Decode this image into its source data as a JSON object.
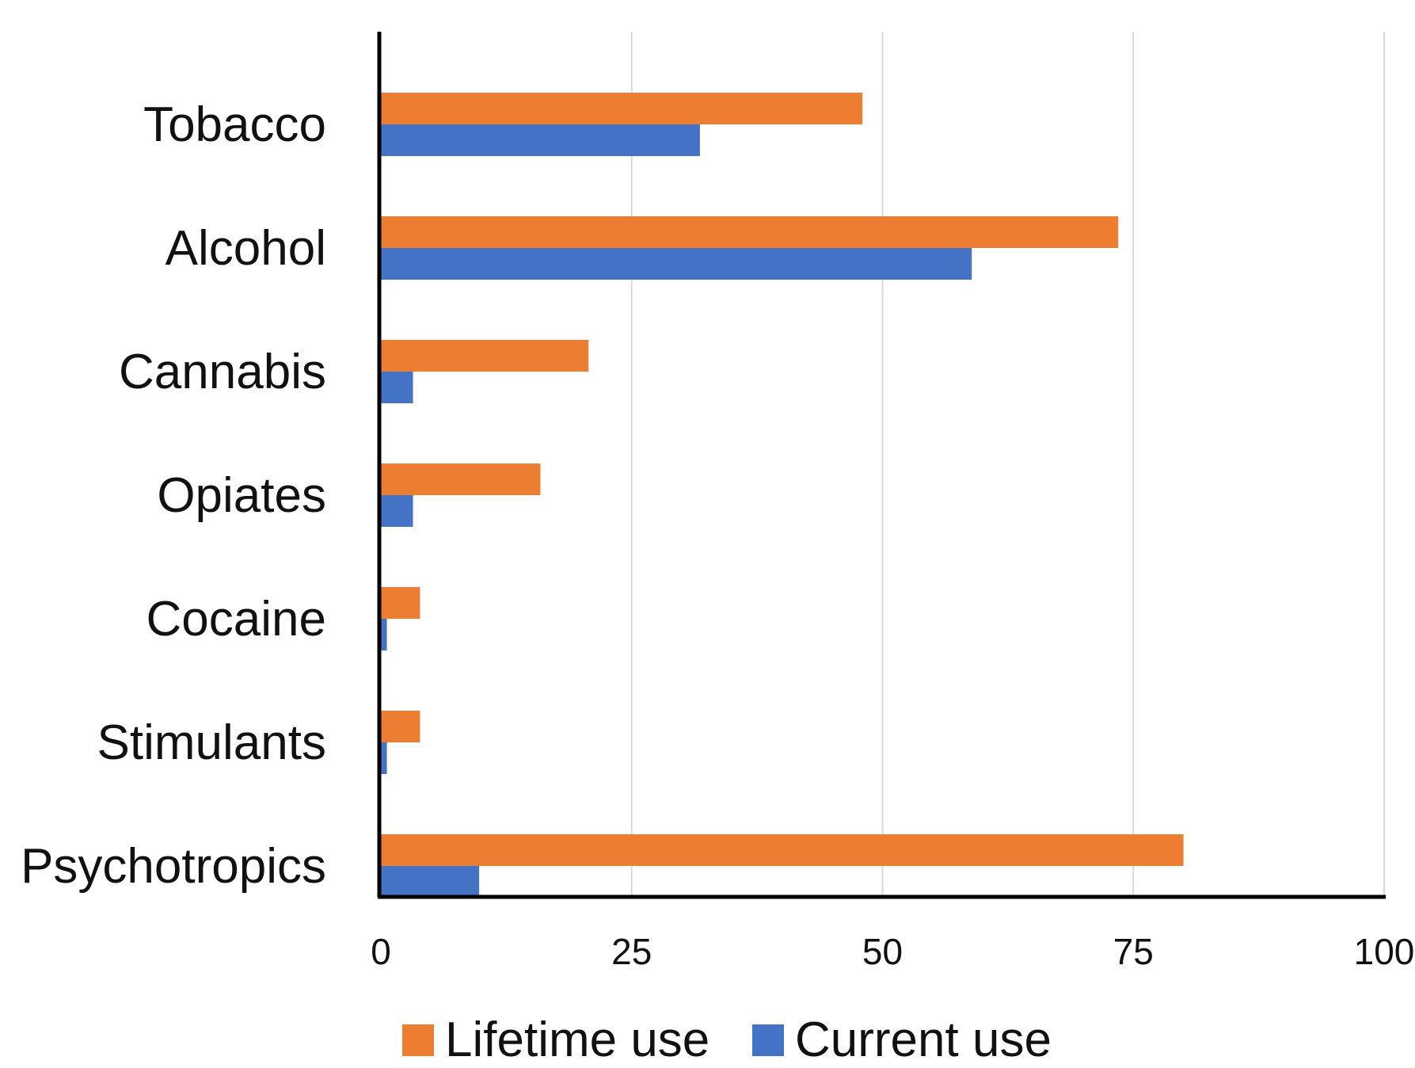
{
  "chart_data": {
    "type": "bar",
    "orientation": "horizontal",
    "categories": [
      "Tobacco",
      "Alcohol",
      "Cannabis",
      "Opiates",
      "Cocaine",
      "Stimulants",
      "Psychotropics"
    ],
    "series": [
      {
        "name": "Lifetime use",
        "color": "#ED7D31",
        "values": [
          48,
          73.5,
          20.7,
          15.9,
          3.9,
          3.9,
          80
        ]
      },
      {
        "name": "Current use",
        "color": "#4472C4",
        "values": [
          31.8,
          58.9,
          3.2,
          3.2,
          0.6,
          0.6,
          9.8
        ]
      }
    ],
    "xlim": [
      0,
      100
    ],
    "xticks": [
      "0",
      "25",
      "50",
      "75",
      "100"
    ],
    "grid": true,
    "legend_position": "bottom"
  }
}
